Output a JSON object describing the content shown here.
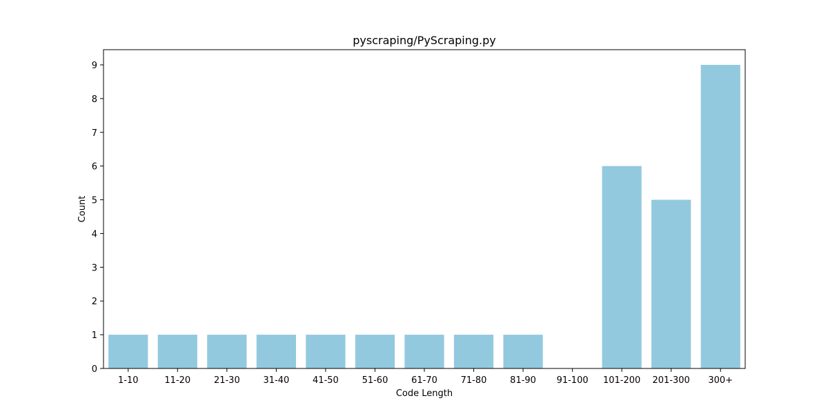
{
  "chart_data": {
    "type": "bar",
    "title": "pyscraping/PyScraping.py",
    "xlabel": "Code Length",
    "ylabel": "Count",
    "categories": [
      "1-10",
      "11-20",
      "21-30",
      "31-40",
      "41-50",
      "51-60",
      "61-70",
      "71-80",
      "81-90",
      "91-100",
      "101-200",
      "201-300",
      "300+"
    ],
    "values": [
      1,
      1,
      1,
      1,
      1,
      1,
      1,
      1,
      1,
      0,
      6,
      5,
      9
    ],
    "ylim": [
      0,
      9.45
    ],
    "yticks": [
      0,
      1,
      2,
      3,
      4,
      5,
      6,
      7,
      8,
      9
    ],
    "bar_color": "#92c9df",
    "grid": false,
    "legend": "none"
  }
}
